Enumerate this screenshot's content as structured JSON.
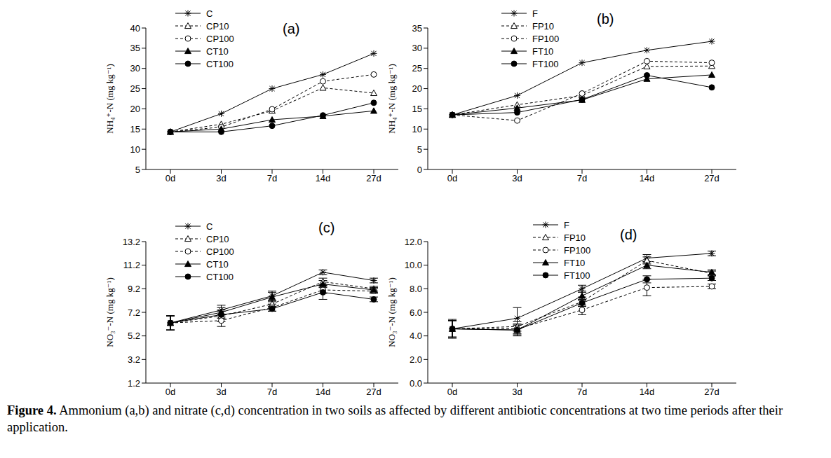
{
  "chart_data": [
    {
      "type": "line",
      "title": "(a)",
      "y_label": "NH₄⁺-N (mg kg⁻¹)",
      "categories": [
        "0d",
        "3d",
        "7d",
        "14d",
        "27d"
      ],
      "ylim": [
        5,
        40
      ],
      "yticks": [
        5,
        10,
        15,
        20,
        25,
        30,
        35,
        40
      ],
      "series": [
        {
          "name": "C",
          "color": "#000000",
          "marker": "star",
          "line_style": "solid",
          "values": [
            14.3,
            18.8,
            25.0,
            28.5,
            33.7
          ]
        },
        {
          "name": "CP10",
          "color": "#000000",
          "marker": "triangle_open",
          "line_style": "dashed",
          "values": [
            14.3,
            16.2,
            19.5,
            25.2,
            23.9
          ]
        },
        {
          "name": "CP100",
          "color": "#000000",
          "marker": "circle_open",
          "line_style": "dashed",
          "values": [
            14.3,
            15.5,
            19.9,
            26.8,
            28.5
          ]
        },
        {
          "name": "CT10",
          "color": "#000000",
          "marker": "triangle",
          "line_style": "solid",
          "values": [
            14.3,
            15.0,
            17.3,
            18.2,
            19.5
          ]
        },
        {
          "name": "CT100",
          "color": "#000000",
          "marker": "circle",
          "line_style": "solid",
          "values": [
            14.3,
            14.3,
            15.8,
            18.4,
            21.5
          ]
        }
      ]
    },
    {
      "type": "line",
      "title": "(b)",
      "y_label": "NH₄⁺-N (mg kg⁻¹)",
      "categories": [
        "0d",
        "3d",
        "7d",
        "14d",
        "27d"
      ],
      "ylim": [
        0,
        35
      ],
      "yticks": [
        0,
        5,
        10,
        15,
        20,
        25,
        30,
        35
      ],
      "series": [
        {
          "name": "F",
          "color": "#000000",
          "marker": "star",
          "line_style": "solid",
          "values": [
            13.5,
            18.3,
            26.4,
            29.5,
            31.7
          ]
        },
        {
          "name": "FP10",
          "color": "#000000",
          "marker": "triangle_open",
          "line_style": "dashed",
          "values": [
            13.5,
            16.0,
            18.3,
            25.5,
            25.6
          ]
        },
        {
          "name": "FP100",
          "color": "#000000",
          "marker": "circle_open",
          "line_style": "dashed",
          "values": [
            13.5,
            12.1,
            18.8,
            26.8,
            26.4
          ]
        },
        {
          "name": "FT10",
          "color": "#000000",
          "marker": "triangle",
          "line_style": "solid",
          "values": [
            13.5,
            15.2,
            17.2,
            22.4,
            23.4
          ]
        },
        {
          "name": "FT100",
          "color": "#000000",
          "marker": "circle",
          "line_style": "solid",
          "values": [
            13.5,
            14.1,
            17.3,
            23.3,
            20.3
          ]
        }
      ]
    },
    {
      "type": "line",
      "title": "(c)",
      "y_label": "NO₃⁻-N (mg kg⁻¹)",
      "categories": [
        "0d",
        "3d",
        "7d",
        "14d",
        "27d"
      ],
      "ylim": [
        1.2,
        13.2
      ],
      "yticks": [
        1.2,
        3.2,
        5.2,
        7.2,
        9.2,
        11.2,
        13.2
      ],
      "series": [
        {
          "name": "C",
          "color": "#000000",
          "marker": "star",
          "line_style": "solid",
          "values": [
            6.3,
            7.4,
            8.6,
            10.6,
            9.9
          ],
          "errors": [
            0.6,
            0.4,
            0.4,
            0.2,
            0.2
          ]
        },
        {
          "name": "CP10",
          "color": "#000000",
          "marker": "triangle_open",
          "line_style": "dashed",
          "values": [
            6.3,
            6.9,
            7.9,
            9.8,
            9.2
          ],
          "errors": [
            0.6,
            0.5,
            0.3,
            0.3,
            0.2
          ]
        },
        {
          "name": "CP100",
          "color": "#000000",
          "marker": "circle_open",
          "line_style": "dashed",
          "values": [
            6.3,
            6.5,
            7.6,
            9.1,
            9.0
          ],
          "errors": [
            0.6,
            0.5,
            0.3,
            0.3,
            0.2
          ]
        },
        {
          "name": "CT10",
          "color": "#000000",
          "marker": "triangle",
          "line_style": "solid",
          "values": [
            6.3,
            7.2,
            8.5,
            9.6,
            9.1
          ],
          "errors": [
            0.6,
            0.4,
            0.4,
            0.3,
            0.2
          ]
        },
        {
          "name": "CT100",
          "color": "#000000",
          "marker": "circle",
          "line_style": "solid",
          "values": [
            6.3,
            7.0,
            7.5,
            8.9,
            8.3
          ],
          "errors": [
            0.6,
            0.3,
            0.2,
            0.6,
            0.2
          ]
        }
      ]
    },
    {
      "type": "line",
      "title": "(d)",
      "y_label": "NO₃⁻-N (mg kg⁻¹)",
      "categories": [
        "0d",
        "3d",
        "7d",
        "14d",
        "27d"
      ],
      "ylim": [
        0,
        12
      ],
      "yticks": [
        {
          "value": 0,
          "label": "0.0"
        },
        {
          "value": 2,
          "label": "2.0"
        },
        {
          "value": 4,
          "label": "4.0"
        },
        {
          "value": 6,
          "label": "6.0"
        },
        {
          "value": 8,
          "label": "8.0"
        },
        {
          "value": 10,
          "label": "10.0"
        },
        {
          "value": 12,
          "label": "12.0"
        }
      ],
      "series": [
        {
          "name": "F",
          "color": "#000000",
          "marker": "star",
          "line_style": "solid",
          "values": [
            4.6,
            5.5,
            8.0,
            10.6,
            11.0
          ],
          "errors": [
            0.8,
            0.9,
            0.3,
            0.3,
            0.2
          ]
        },
        {
          "name": "FP10",
          "color": "#000000",
          "marker": "triangle_open",
          "line_style": "dashed",
          "values": [
            4.6,
            4.8,
            6.9,
            10.4,
            9.3
          ],
          "errors": [
            0.7,
            0.4,
            0.4,
            0.3,
            0.2
          ]
        },
        {
          "name": "FP100",
          "color": "#000000",
          "marker": "circle_open",
          "line_style": "dashed",
          "values": [
            4.6,
            4.6,
            6.2,
            8.1,
            8.2
          ],
          "errors": [
            0.7,
            0.4,
            0.4,
            0.7,
            0.2
          ]
        },
        {
          "name": "FT10",
          "color": "#000000",
          "marker": "triangle",
          "line_style": "solid",
          "values": [
            4.6,
            4.5,
            7.4,
            10.0,
            9.4
          ],
          "errors": [
            0.7,
            0.4,
            0.4,
            0.3,
            0.2
          ]
        },
        {
          "name": "FT100",
          "color": "#000000",
          "marker": "circle",
          "line_style": "solid",
          "values": [
            4.6,
            4.5,
            6.8,
            8.8,
            8.9
          ],
          "errors": [
            0.7,
            0.5,
            0.3,
            0.3,
            0.2
          ]
        }
      ]
    }
  ],
  "caption": {
    "label": "Figure 4.",
    "text": "Ammonium (a,b) and nitrate (c,d) concentration in two soils as affected by different antibiotic concentrations at two time periods after their application."
  }
}
